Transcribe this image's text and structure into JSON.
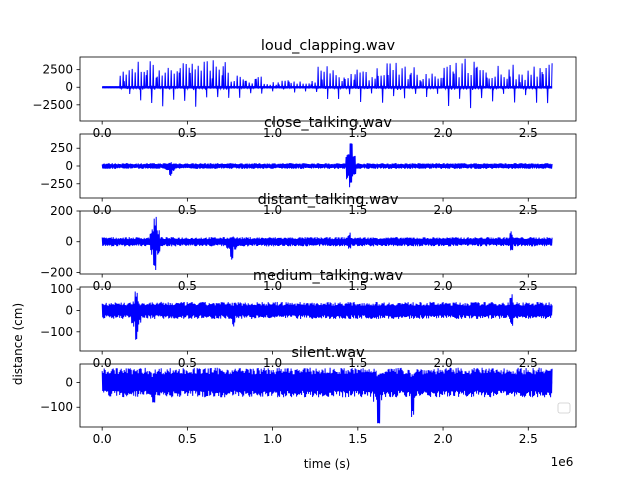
{
  "figure": {
    "xlabel": "time (s)",
    "ylabel": "distance (cm)",
    "x_offset_label": "1e6"
  },
  "colors": {
    "trace": "#0000ff",
    "background": "#ffffff",
    "axes": "#000000"
  },
  "chart_data": [
    {
      "type": "line",
      "title": "loud_clapping.wav",
      "x_ticks": [
        "0.0",
        "0.5",
        "1.0",
        "1.5",
        "2.0",
        "2.5"
      ],
      "x_tick_values": [
        0,
        500000,
        1000000,
        1500000,
        2000000,
        2500000
      ],
      "y_ticks": [
        "−2500",
        "0",
        "2500"
      ],
      "y_tick_values": [
        -2500,
        0,
        2500
      ],
      "xlim": [
        -130000,
        2780000
      ],
      "ylim": [
        -4800,
        4300
      ],
      "series": [
        {
          "x_range": [
            0,
            2640000
          ],
          "envelope": [
            0,
            2500,
            3500,
            3200,
            3300,
            3800,
            3500,
            2000,
            1400,
            800,
            900,
            800,
            2800,
            2200,
            2400,
            3100,
            3600,
            2600,
            1800,
            3200,
            3800,
            2400,
            3000,
            2200,
            3300
          ]
        }
      ]
    },
    {
      "type": "line",
      "title": "close_talking.wav",
      "x_ticks": [
        "0.0",
        "0.5",
        "1.0",
        "1.5",
        "2.0",
        "2.5"
      ],
      "x_tick_values": [
        0,
        500000,
        1000000,
        1500000,
        2000000,
        2500000
      ],
      "y_ticks": [
        "−250",
        "0",
        "250"
      ],
      "y_tick_values": [
        -250,
        0,
        250
      ],
      "xlim": [
        -130000,
        2780000
      ],
      "ylim": [
        -450,
        450
      ],
      "series": [
        {
          "x_range": [
            0,
            2640000
          ],
          "baseline": 40,
          "events": [
            {
              "x": 400000,
              "min": -160,
              "max": 60
            },
            {
              "x": 1460000,
              "min": -420,
              "max": 400
            }
          ]
        }
      ]
    },
    {
      "type": "line",
      "title": "distant_talking.wav",
      "x_ticks": [
        "0.0",
        "0.5",
        "1.0",
        "1.5",
        "2.0",
        "2.5"
      ],
      "x_tick_values": [
        0,
        500000,
        1000000,
        1500000,
        2000000,
        2500000
      ],
      "y_ticks": [
        "−200",
        "0",
        "200"
      ],
      "y_tick_values": [
        -200,
        0,
        200
      ],
      "xlim": [
        -130000,
        2780000
      ],
      "ylim": [
        -210,
        200
      ],
      "series": [
        {
          "x_range": [
            0,
            2640000
          ],
          "baseline": 30,
          "events": [
            {
              "x": 310000,
              "min": -190,
              "max": 180
            },
            {
              "x": 760000,
              "min": -130,
              "max": 50
            },
            {
              "x": 1450000,
              "min": -60,
              "max": 60
            },
            {
              "x": 2400000,
              "min": -60,
              "max": 70
            }
          ]
        }
      ]
    },
    {
      "type": "line",
      "title": "medium_talking.wav",
      "x_ticks": [
        "0.0",
        "0.5",
        "1.0",
        "1.5",
        "2.0",
        "2.5"
      ],
      "x_tick_values": [
        0,
        500000,
        1000000,
        1500000,
        2000000,
        2500000
      ],
      "y_ticks": [
        "−100",
        "0",
        "100"
      ],
      "y_tick_values": [
        -100,
        0,
        100
      ],
      "xlim": [
        -130000,
        2780000
      ],
      "ylim": [
        -190,
        110
      ],
      "series": [
        {
          "x_range": [
            0,
            2640000
          ],
          "baseline": 40,
          "events": [
            {
              "x": 200000,
              "min": -170,
              "max": 95
            },
            {
              "x": 770000,
              "min": -80,
              "max": 40
            },
            {
              "x": 2400000,
              "min": -75,
              "max": 80
            }
          ]
        }
      ]
    },
    {
      "type": "line",
      "title": "silent.wav",
      "x_ticks": [
        "0.0",
        "0.5",
        "1.0",
        "1.5",
        "2.0",
        "2.5"
      ],
      "x_tick_values": [
        0,
        500000,
        1000000,
        1500000,
        2000000,
        2500000
      ],
      "y_ticks": [
        "−100",
        "0"
      ],
      "y_tick_values": [
        -100,
        0
      ],
      "xlim": [
        -130000,
        2780000
      ],
      "ylim": [
        -180,
        75
      ],
      "legend": "lower right (empty)",
      "series": [
        {
          "x_range": [
            0,
            2640000
          ],
          "baseline": 60,
          "events": [
            {
              "x": 1620000,
              "min": -175,
              "max": 40
            },
            {
              "x": 1820000,
              "min": -150,
              "max": 40
            },
            {
              "x": 300000,
              "min": -100,
              "max": 40
            }
          ]
        }
      ]
    }
  ]
}
